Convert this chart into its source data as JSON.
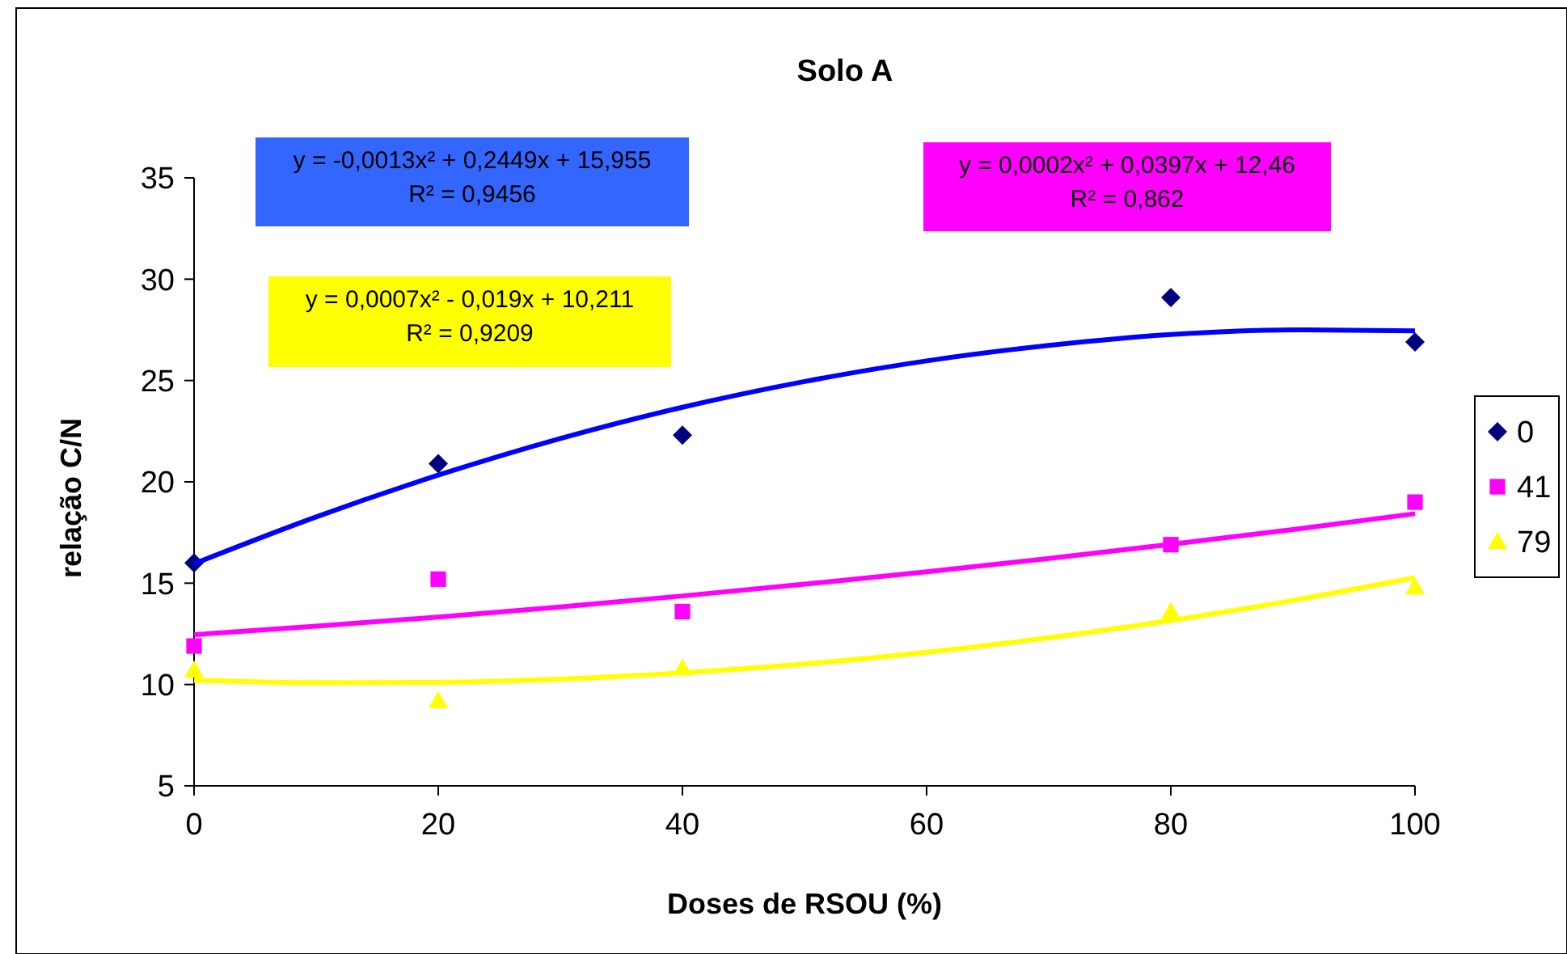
{
  "chart_data": {
    "type": "scatter",
    "title": "Solo A",
    "xlabel": "Doses de RSOU (%)",
    "ylabel": "relação C/N",
    "xlim": [
      0,
      100
    ],
    "xticks": [
      0,
      20,
      40,
      60,
      80,
      100
    ],
    "ylim": [
      5,
      35
    ],
    "yticks": [
      5,
      10,
      15,
      20,
      25,
      30,
      35
    ],
    "grid": false,
    "legend": "right",
    "series": [
      {
        "name": "0",
        "marker": "diamond",
        "color": "#000080",
        "x": [
          0,
          20,
          40,
          80,
          100
        ],
        "values": [
          16.0,
          20.9,
          22.3,
          29.1,
          26.9
        ]
      },
      {
        "name": "41",
        "marker": "square",
        "color": "#ff00ff",
        "x": [
          0,
          20,
          40,
          80,
          100
        ],
        "values": [
          11.9,
          15.2,
          13.6,
          16.9,
          19.0
        ]
      },
      {
        "name": "79",
        "marker": "triangle",
        "color": "#ffff00",
        "x": [
          0,
          20,
          40,
          80,
          100
        ],
        "values": [
          10.7,
          9.2,
          10.8,
          13.6,
          14.8
        ]
      },
      {
        "type": "line",
        "color": "#0000ff",
        "x": [
          0,
          10,
          20,
          30,
          40,
          50,
          60,
          70,
          80,
          90,
          100
        ],
        "values": [
          15.96,
          18.27,
          20.33,
          22.14,
          23.68,
          24.95,
          25.97,
          26.73,
          27.27,
          27.5,
          27.45
        ]
      },
      {
        "type": "line",
        "color": "#ff00ff",
        "x": [
          0,
          10,
          20,
          30,
          40,
          50,
          60,
          70,
          80,
          90,
          100
        ],
        "values": [
          12.46,
          12.88,
          13.33,
          13.83,
          14.37,
          14.95,
          15.56,
          16.22,
          16.92,
          17.65,
          18.43
        ]
      },
      {
        "type": "line",
        "color": "#ffff00",
        "x": [
          0,
          10,
          20,
          30,
          40,
          50,
          60,
          70,
          80,
          90,
          100
        ],
        "values": [
          10.21,
          10.09,
          10.11,
          10.27,
          10.58,
          11.01,
          11.59,
          12.31,
          13.16,
          14.15,
          15.27
        ]
      }
    ],
    "annotations": [
      "y = -0,0013x² + 0,2449x + 15,955\nR² = 0,9456",
      "y = 0,0007x² - 0,019x + 10,211\nR² = 0,9209",
      "y = 0,0002x² + 0,0397x + 12,46\nR² = 0,862"
    ]
  }
}
